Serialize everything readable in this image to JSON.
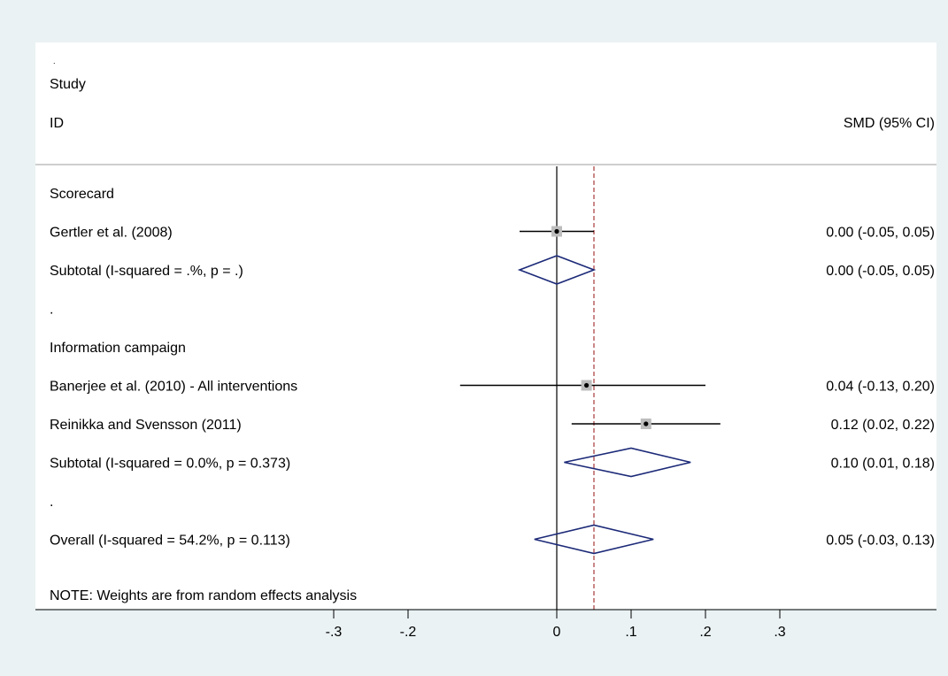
{
  "header": {
    "dot": ".",
    "col_study_line1": "Study",
    "col_study_line2": "ID",
    "col_effect": "SMD (95% CI)"
  },
  "footnote": "NOTE: Weights are from random effects analysis",
  "colors": {
    "background": "#eaf2f3",
    "plot_area": "#ffffff",
    "weight_box": "#bdbdbd",
    "diamond": "#1c2a78",
    "overall_line": "#a8383a",
    "rule": "#9e9e9e"
  },
  "chart_data": {
    "type": "forest",
    "xlim": [
      -0.3,
      0.3
    ],
    "xticks": [
      {
        "value": -0.3,
        "label": "-.3"
      },
      {
        "value": -0.2,
        "label": "-.2"
      },
      {
        "value": 0,
        "label": "0"
      },
      {
        "value": 0.1,
        "label": ".1"
      },
      {
        "value": 0.2,
        "label": ".2"
      },
      {
        "value": 0.3,
        "label": ".3"
      }
    ],
    "null_line": 0,
    "overall_estimate": 0.05,
    "rows": [
      {
        "type": "group",
        "label": "Scorecard"
      },
      {
        "type": "study",
        "label": "Gertler et al. (2008)",
        "estimate": 0.0,
        "lower": -0.05,
        "upper": 0.05,
        "ci_text": "0.00 (-0.05, 0.05)"
      },
      {
        "type": "subtotal",
        "label": "Subtotal  (I-squared = .%, p = .)",
        "estimate": 0.0,
        "lower": -0.05,
        "upper": 0.05,
        "ci_text": "0.00 (-0.05, 0.05)"
      },
      {
        "type": "spacer",
        "label": "."
      },
      {
        "type": "group",
        "label": "Information campaign"
      },
      {
        "type": "study",
        "label": "Banerjee et al. (2010) - All interventions",
        "estimate": 0.04,
        "lower": -0.13,
        "upper": 0.2,
        "ci_text": "0.04 (-0.13, 0.20)"
      },
      {
        "type": "study",
        "label": "Reinikka and Svensson (2011)",
        "estimate": 0.12,
        "lower": 0.02,
        "upper": 0.22,
        "ci_text": "0.12 (0.02, 0.22)"
      },
      {
        "type": "subtotal",
        "label": "Subtotal  (I-squared = 0.0%, p = 0.373)",
        "estimate": 0.1,
        "lower": 0.01,
        "upper": 0.18,
        "ci_text": "0.10 (0.01, 0.18)"
      },
      {
        "type": "spacer",
        "label": "."
      },
      {
        "type": "overall",
        "label": "Overall  (I-squared = 54.2%, p = 0.113)",
        "estimate": 0.05,
        "lower": -0.03,
        "upper": 0.13,
        "ci_text": "0.05 (-0.03, 0.13)"
      }
    ]
  }
}
